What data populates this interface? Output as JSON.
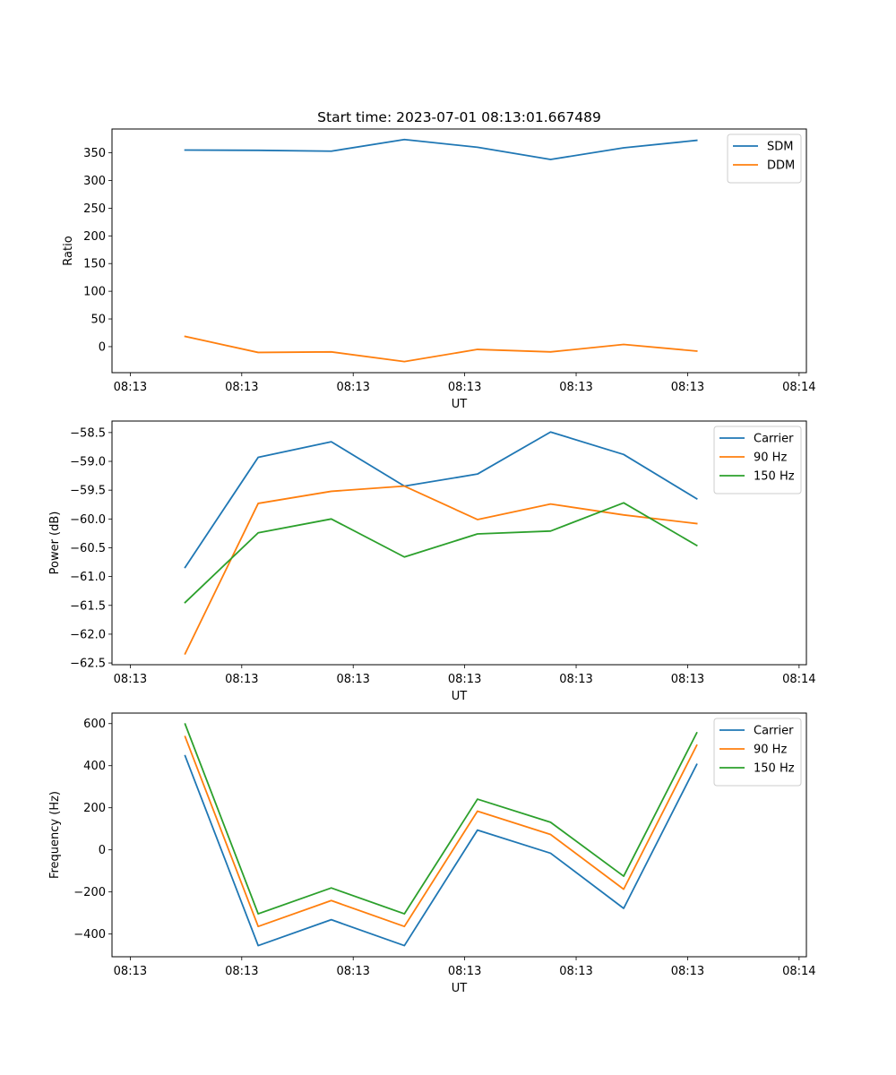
{
  "chart_data": [
    {
      "type": "line",
      "title": "Start time: 2023-07-01 08:13:01.667489",
      "xlabel": "UT",
      "ylabel": "Ratio",
      "x": [
        1,
        2,
        3,
        4,
        5,
        6,
        7,
        8
      ],
      "x_ticks": [
        0.25,
        1.775,
        3.3,
        4.825,
        6.35,
        7.875,
        9.4
      ],
      "x_tick_labels": [
        "08:13",
        "08:13",
        "08:13",
        "08:13",
        "08:13",
        "08:13",
        "08:14"
      ],
      "xlim": [
        0,
        9.5
      ],
      "ylim": [
        -47,
        393
      ],
      "y_ticks": [
        0,
        50,
        100,
        150,
        200,
        250,
        300,
        350
      ],
      "y_tick_labels": [
        "0",
        "50",
        "100",
        "150",
        "200",
        "250",
        "300",
        "350"
      ],
      "legend_position": "top-right",
      "series": [
        {
          "name": "SDM",
          "color": "#1f77b4",
          "values": [
            355,
            354.5,
            353,
            374,
            360,
            338,
            359,
            372.5
          ]
        },
        {
          "name": "DDM",
          "color": "#ff7f0e",
          "values": [
            18.5,
            -10.5,
            -9.5,
            -27,
            -5,
            -9.5,
            4,
            -8
          ]
        }
      ]
    },
    {
      "type": "line",
      "title": "",
      "xlabel": "UT",
      "ylabel": "Power (dB)",
      "x": [
        1,
        2,
        3,
        4,
        5,
        6,
        7,
        8
      ],
      "x_ticks": [
        0.25,
        1.775,
        3.3,
        4.825,
        6.35,
        7.875,
        9.4
      ],
      "x_tick_labels": [
        "08:13",
        "08:13",
        "08:13",
        "08:13",
        "08:13",
        "08:13",
        "08:14"
      ],
      "xlim": [
        0,
        9.5
      ],
      "ylim": [
        -62.53,
        -58.3
      ],
      "y_ticks": [
        -62.5,
        -62.0,
        -61.5,
        -61.0,
        -60.5,
        -60.0,
        -59.5,
        -59.0,
        -58.5
      ],
      "y_tick_labels": [
        "−62.5",
        "−62.0",
        "−61.5",
        "−61.0",
        "−60.5",
        "−60.0",
        "−59.5",
        "−59.0",
        "−58.5"
      ],
      "legend_position": "top-right",
      "series": [
        {
          "name": "Carrier",
          "color": "#1f77b4",
          "values": [
            -60.84,
            -58.93,
            -58.66,
            -59.43,
            -59.22,
            -58.49,
            -58.88,
            -59.65
          ]
        },
        {
          "name": "90 Hz",
          "color": "#ff7f0e",
          "values": [
            -62.34,
            -59.73,
            -59.52,
            -59.43,
            -60.01,
            -59.74,
            -59.93,
            -60.08
          ]
        },
        {
          "name": "150 Hz",
          "color": "#2ca02c",
          "values": [
            -61.45,
            -60.24,
            -60.0,
            -60.66,
            -60.26,
            -60.21,
            -59.72,
            -60.46
          ]
        }
      ]
    },
    {
      "type": "line",
      "title": "",
      "xlabel": "UT",
      "ylabel": "Frequency (Hz)",
      "x": [
        1,
        2,
        3,
        4,
        5,
        6,
        7,
        8
      ],
      "x_ticks": [
        0.25,
        1.775,
        3.3,
        4.825,
        6.35,
        7.875,
        9.4
      ],
      "x_tick_labels": [
        "08:13",
        "08:13",
        "08:13",
        "08:13",
        "08:13",
        "08:13",
        "08:14"
      ],
      "xlim": [
        0,
        9.5
      ],
      "ylim": [
        -508,
        650
      ],
      "y_ticks": [
        -400,
        -200,
        0,
        200,
        400,
        600
      ],
      "y_tick_labels": [
        "−400",
        "−200",
        "0",
        "200",
        "400",
        "600"
      ],
      "legend_position": "top-right",
      "series": [
        {
          "name": "Carrier",
          "color": "#1f77b4",
          "values": [
            447,
            -455,
            -332,
            -455,
            94,
            -16,
            -278,
            406
          ]
        },
        {
          "name": "90 Hz",
          "color": "#ff7f0e",
          "values": [
            538,
            -364,
            -241,
            -364,
            184,
            73,
            -187,
            497
          ]
        },
        {
          "name": "150 Hz",
          "color": "#2ca02c",
          "values": [
            598,
            -304,
            -181,
            -304,
            241,
            131,
            -125,
            556
          ]
        }
      ]
    }
  ]
}
